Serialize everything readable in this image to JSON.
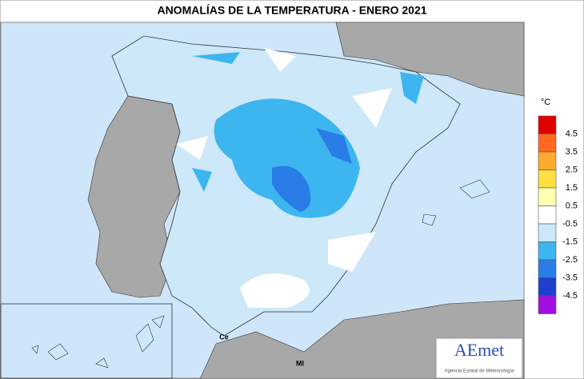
{
  "header": {
    "title": "ANOMALÍAS DE LA TEMPERATURA - ENERO 2021"
  },
  "map": {
    "labels": [
      "Ce",
      "Ml"
    ]
  },
  "legend": {
    "unit": "°C",
    "labels": [
      "4.5",
      "3.5",
      "2.5",
      "1.5",
      "0.5",
      "-0.5",
      "-1.5",
      "-2.5",
      "-3.5",
      "-4.5"
    ],
    "colors": [
      "#e00000",
      "#ff6a20",
      "#ffaa30",
      "#ffe040",
      "#ffffb0",
      "#ffffff",
      "#cde8f8",
      "#3db6f0",
      "#2a7de6",
      "#1f3fcf",
      "#a010e0"
    ]
  },
  "logo": {
    "name": "AEmet",
    "subtitle": "Agencia Estatal de Meteorología"
  }
}
